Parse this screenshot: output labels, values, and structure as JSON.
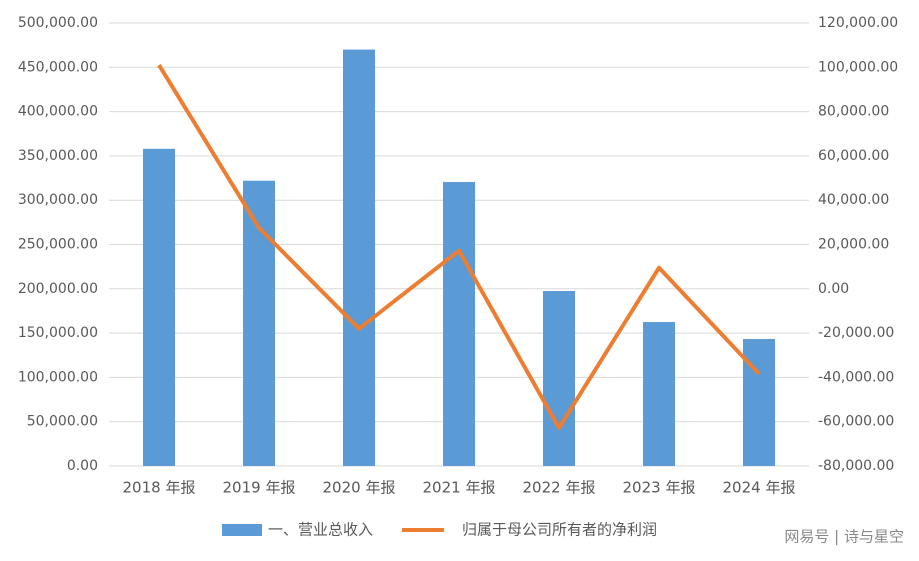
{
  "chart_data": {
    "type": "bar",
    "categories": [
      "2018 年报",
      "2019 年报",
      "2020 年报",
      "2021 年报",
      "2022 年报",
      "2023 年报",
      "2024 年报"
    ],
    "series": [
      {
        "name": "一、营业总收入",
        "color": "#5b9bd5",
        "values": [
          358000,
          322000,
          470000,
          320500,
          197500,
          162500,
          143300
        ]
      },
      {
        "name": "归属于母公司所有者的净利润",
        "color": "#ed7d31",
        "type": "line",
        "axis": "y2",
        "values": [
          101000,
          27500,
          -18000,
          17200,
          -62800,
          9500,
          -38400
        ]
      }
    ],
    "ylim": [
      0,
      500000
    ],
    "yticks": [
      {
        "value": 0,
        "label": "0.00"
      },
      {
        "value": 50000,
        "label": "50,000.00"
      },
      {
        "value": 100000,
        "label": "100,000.00"
      },
      {
        "value": 150000,
        "label": "150,000.00"
      },
      {
        "value": 200000,
        "label": "200,000.00"
      },
      {
        "value": 250000,
        "label": "250,000.00"
      },
      {
        "value": 300000,
        "label": "300,000.00"
      },
      {
        "value": 350000,
        "label": "350,000.00"
      },
      {
        "value": 400000,
        "label": "400,000.00"
      },
      {
        "value": 450000,
        "label": "450,000.00"
      },
      {
        "value": 500000,
        "label": "500,000.00"
      }
    ],
    "y2lim": [
      -80000,
      120000
    ],
    "y2ticks": [
      {
        "value": -80000,
        "label": "-80,000.00"
      },
      {
        "value": -60000,
        "label": "-60,000.00"
      },
      {
        "value": -40000,
        "label": "-40,000.00"
      },
      {
        "value": -20000,
        "label": "-20,000.00"
      },
      {
        "value": 0,
        "label": "0.00"
      },
      {
        "value": 20000,
        "label": "20,000.00"
      },
      {
        "value": 40000,
        "label": "40,000.00"
      },
      {
        "value": 60000,
        "label": "60,000.00"
      },
      {
        "value": 80000,
        "label": "80,000.00"
      },
      {
        "value": 100000,
        "label": "100,000.00"
      },
      {
        "value": 120000,
        "label": "120,000.00"
      }
    ],
    "grid": true,
    "legend": "bottom",
    "watermark": "网易号 | 诗与星空"
  }
}
